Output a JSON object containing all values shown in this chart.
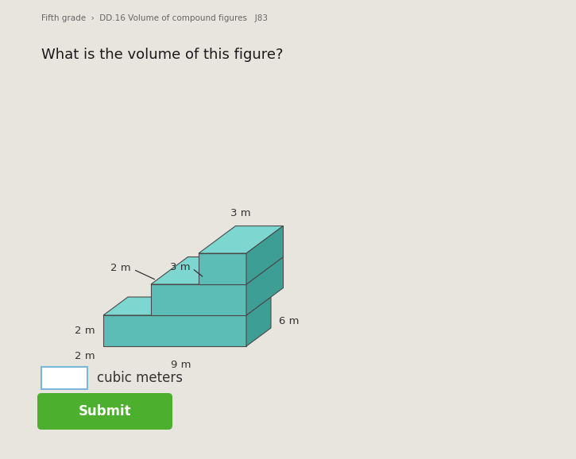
{
  "bg_color": "#e8e4de",
  "title_text": "What is the volume of this figure?",
  "breadcrumb": "Fifth grade  ›  DD.16 Volume of compound figures   J83",
  "label_3m_top": "3 m",
  "label_3m_mid": "3 m",
  "label_2m_depth": "2 m",
  "label_2m_height": "2 m",
  "label_2m_base": "2 m",
  "label_6m": "6 m",
  "label_9m": "9 m",
  "teal_face": "#5bbdb5",
  "teal_top": "#7dd6cf",
  "teal_side": "#3d9e96",
  "submit_color": "#4caf2e",
  "submit_text_color": "#ffffff",
  "submit_label": "Submit",
  "cubic_meters_label": "cubic meters"
}
